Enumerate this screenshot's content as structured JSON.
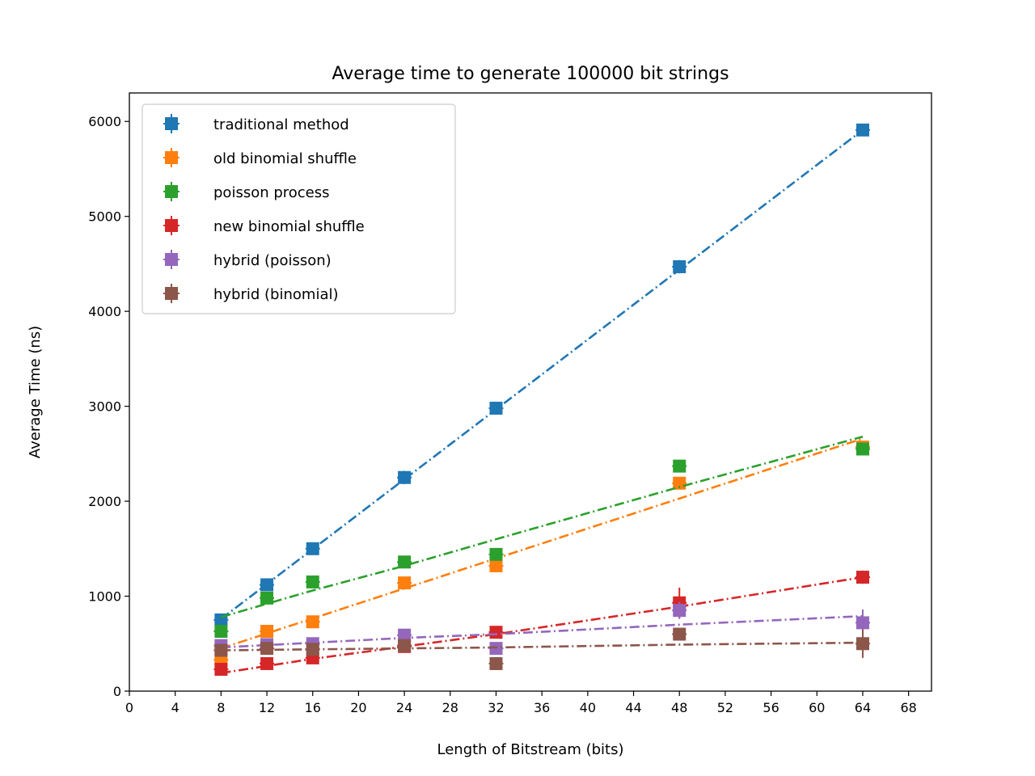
{
  "chart_data": {
    "type": "scatter",
    "title": "Average time to generate 100000 bit strings",
    "xlabel": "Length of Bitstream (bits)",
    "ylabel": "Average Time (ns)",
    "xlim": [
      0,
      70
    ],
    "ylim": [
      0,
      6300
    ],
    "xticks": [
      0,
      4,
      8,
      12,
      16,
      20,
      24,
      28,
      32,
      36,
      40,
      44,
      48,
      52,
      56,
      60,
      64,
      68
    ],
    "yticks": [
      0,
      1000,
      2000,
      3000,
      4000,
      5000,
      6000
    ],
    "grid": false,
    "legend_position": "top-left",
    "x": [
      8,
      12,
      16,
      24,
      32,
      48,
      64
    ],
    "series": [
      {
        "name": "traditional method",
        "color": "#1f77b4",
        "values": [
          750,
          1120,
          1500,
          2250,
          2980,
          4470,
          5910
        ],
        "errors": [
          40,
          40,
          40,
          70,
          40,
          70,
          60
        ],
        "fit": [
          [
            8,
            760
          ],
          [
            64,
            5910
          ]
        ]
      },
      {
        "name": "old binomial shuffle",
        "color": "#ff7f0e",
        "values": [
          330,
          630,
          730,
          1140,
          1320,
          2190,
          2570
        ],
        "errors": [
          30,
          40,
          40,
          50,
          40,
          60,
          60
        ],
        "fit": [
          [
            8,
            450
          ],
          [
            64,
            2660
          ]
        ]
      },
      {
        "name": "poisson process",
        "color": "#2ca02c",
        "values": [
          630,
          980,
          1150,
          1360,
          1440,
          2370,
          2550
        ],
        "errors": [
          30,
          40,
          40,
          40,
          40,
          60,
          60
        ],
        "fit": [
          [
            8,
            780
          ],
          [
            16,
            1060
          ],
          [
            24,
            1320
          ],
          [
            32,
            1600
          ],
          [
            48,
            2150
          ],
          [
            64,
            2680
          ]
        ]
      },
      {
        "name": "new binomial shuffle",
        "color": "#d62728",
        "values": [
          230,
          290,
          350,
          470,
          620,
          930,
          1200
        ],
        "errors": [
          20,
          20,
          30,
          30,
          40,
          160,
          70
        ],
        "fit": [
          [
            8,
            190
          ],
          [
            16,
            340
          ],
          [
            24,
            470
          ],
          [
            32,
            600
          ],
          [
            48,
            890
          ],
          [
            64,
            1200
          ]
        ]
      },
      {
        "name": "hybrid (poisson)",
        "color": "#9467bd",
        "values": [
          480,
          490,
          500,
          590,
          450,
          850,
          720
        ],
        "errors": [
          30,
          30,
          40,
          40,
          40,
          90,
          140
        ],
        "fit": [
          [
            8,
            460
          ],
          [
            16,
            510
          ],
          [
            24,
            560
          ],
          [
            32,
            600
          ],
          [
            48,
            700
          ],
          [
            64,
            790
          ]
        ]
      },
      {
        "name": "hybrid (binomial)",
        "color": "#8c564b",
        "values": [
          430,
          450,
          440,
          480,
          290,
          600,
          500
        ],
        "errors": [
          30,
          30,
          30,
          40,
          40,
          40,
          150
        ],
        "fit": [
          [
            8,
            430
          ],
          [
            16,
            440
          ],
          [
            24,
            450
          ],
          [
            32,
            460
          ],
          [
            48,
            490
          ],
          [
            64,
            510
          ]
        ]
      }
    ]
  }
}
